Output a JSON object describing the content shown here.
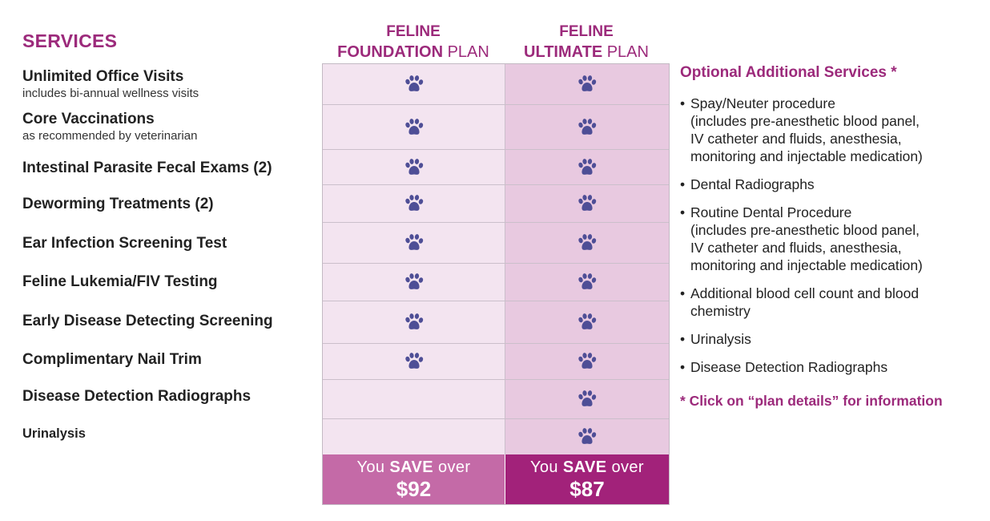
{
  "services_title": "SERVICES",
  "services": [
    {
      "name": "Unlimited Office Visits",
      "sub": "includes bi-annual wellness visits",
      "foundation": true,
      "ultimate": true
    },
    {
      "name": "Core Vaccinations",
      "sub": "as recommended by veterinarian",
      "foundation": true,
      "ultimate": true
    },
    {
      "name": "Intestinal Parasite Fecal Exams (2)",
      "sub": "",
      "foundation": true,
      "ultimate": true
    },
    {
      "name": "Deworming Treatments (2)",
      "sub": "",
      "foundation": true,
      "ultimate": true
    },
    {
      "name": "Ear Infection Screening Test",
      "sub": "",
      "foundation": true,
      "ultimate": true
    },
    {
      "name": "Feline Lukemia/FIV Testing",
      "sub": "",
      "foundation": true,
      "ultimate": true
    },
    {
      "name": "Early Disease Detecting Screening",
      "sub": "",
      "foundation": true,
      "ultimate": true
    },
    {
      "name": "Complimentary Nail Trim",
      "sub": "",
      "foundation": true,
      "ultimate": true
    },
    {
      "name": "Disease Detection Radiographs",
      "sub": "",
      "foundation": false,
      "ultimate": true
    },
    {
      "name": "Urinalysis",
      "sub": "",
      "foundation": false,
      "ultimate": true
    }
  ],
  "plans": {
    "foundation": {
      "line1": "FELINE",
      "name": "FOUNDATION",
      "suffix": "PLAN",
      "save_prefix": "You",
      "save_word": "SAVE",
      "save_suffix": "over",
      "amount": "$92"
    },
    "ultimate": {
      "line1": "FELINE",
      "name": "ULTIMATE",
      "suffix": "PLAN",
      "save_prefix": "You",
      "save_word": "SAVE",
      "save_suffix": "over",
      "amount": "$87"
    }
  },
  "optional": {
    "title": "Optional Additional Services *",
    "items": [
      {
        "bullet": "•",
        "lines": [
          "Spay/Neuter procedure",
          "(includes pre-anesthetic blood panel,",
          "IV catheter and fluids, anesthesia,",
          "monitoring and injectable medication)"
        ]
      },
      {
        "bullet": "•",
        "lines": [
          "Dental Radiographs"
        ]
      },
      {
        "bullet": "•",
        "lines": [
          "Routine Dental Procedure",
          "(includes pre-anesthetic blood panel,",
          "IV catheter and fluids, anesthesia,",
          "monitoring and injectable medication)"
        ]
      },
      {
        "bullet": "•",
        "lines": [
          "Additional blood cell count and blood",
          "chemistry"
        ]
      },
      {
        "bullet": "•",
        "lines": [
          "Urinalysis"
        ]
      },
      {
        "bullet": "•",
        "lines": [
          "Disease Detection Radiographs"
        ]
      }
    ],
    "note": "* Click on “plan details” for information"
  },
  "colors": {
    "brand": "#9c2a7b",
    "paw": "#4e4e96",
    "foundation_cell": "#f3e4f0",
    "ultimate_cell": "#e8c9e0",
    "foundation_save": "#c46aa7",
    "ultimate_save": "#a2227a"
  },
  "icons": {
    "check": "paw-icon"
  }
}
